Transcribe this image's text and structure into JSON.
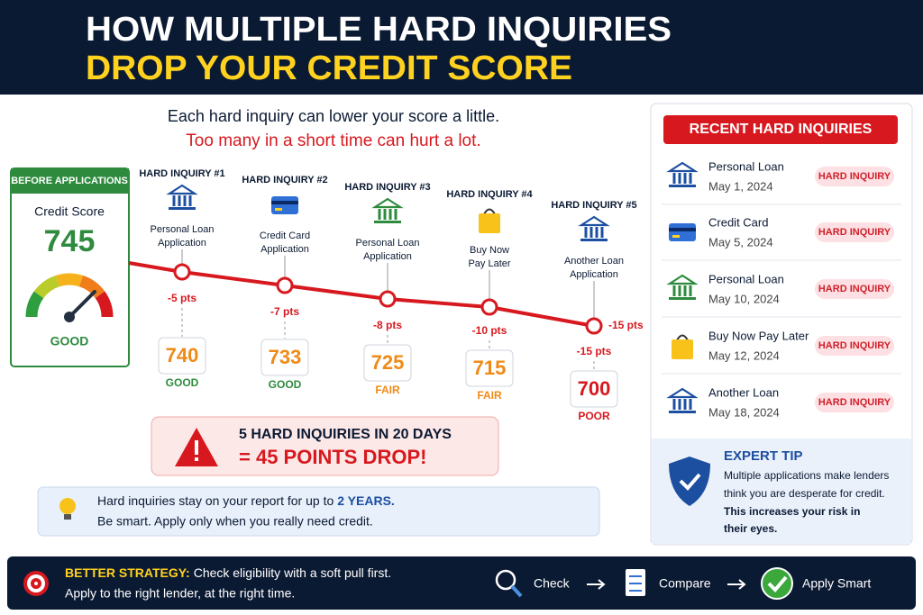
{
  "header": {
    "title_line1": "HOW MULTIPLE HARD INQUIRIES",
    "title_line2": "DROP YOUR CREDIT SCORE"
  },
  "intro": {
    "line1": "Each hard inquiry can lower your score a little.",
    "line2": "Too many in a short time can hurt a lot."
  },
  "before": {
    "label": "BEFORE APPLICATIONS",
    "score_label": "Credit Score",
    "score": "745",
    "rating": "GOOD"
  },
  "inquiries": [
    {
      "label": "HARD INQUIRY #1",
      "name": [
        "Personal Loan",
        "Application"
      ],
      "drop": "-5 pts",
      "score": "740",
      "rating": "GOOD"
    },
    {
      "label": "HARD INQUIRY #2",
      "name": [
        "Credit Card",
        "Application"
      ],
      "drop": "-7 pts",
      "score": "733",
      "rating": "GOOD"
    },
    {
      "label": "HARD INQUIRY #3",
      "name": [
        "Personal Loan",
        "Application"
      ],
      "drop": "-8 pts",
      "score": "725",
      "rating": "FAIR"
    },
    {
      "label": "HARD INQUIRY #4",
      "name": [
        "Buy Now",
        "Pay Later"
      ],
      "drop": "-10 pts",
      "score": "715",
      "rating": "FAIR"
    },
    {
      "label": "HARD INQUIRY #5",
      "name": [
        "Another Loan",
        "Application"
      ],
      "drop": "-15 pts",
      "point_label": "-15 pts",
      "score": "700",
      "rating": "POOR"
    }
  ],
  "alert": {
    "line1": "5 HARD INQUIRIES IN 20 DAYS",
    "line2": "= 45 POINTS DROP!"
  },
  "info": {
    "text": "Hard inquiries stay on your report for up to",
    "highlight": "2 YEARS.",
    "line2": "Be smart. Apply only when you really need credit."
  },
  "recent": {
    "title": "RECENT HARD INQUIRIES",
    "items": [
      {
        "name": "Personal Loan",
        "date": "May 1, 2024",
        "tag": "HARD INQUIRY"
      },
      {
        "name": "Credit Card",
        "date": "May 5, 2024",
        "tag": "HARD INQUIRY"
      },
      {
        "name": "Personal Loan",
        "date": "May 10, 2024",
        "tag": "HARD INQUIRY"
      },
      {
        "name": "Buy Now Pay Later",
        "date": "May 12, 2024",
        "tag": "HARD INQUIRY"
      },
      {
        "name": "Another Loan",
        "date": "May 18, 2024",
        "tag": "HARD INQUIRY"
      }
    ]
  },
  "tip": {
    "title": "EXPERT TIP",
    "text": [
      "Multiple applications make lenders",
      "think you are desperate for credit."
    ],
    "bold": [
      "This increases your risk in",
      "their eyes."
    ]
  },
  "strategy": {
    "label": "BETTER STRATEGY:",
    "line1": "Check eligibility with a soft pull first.",
    "line2": "Apply to the right lender, at the right time.",
    "steps": [
      "Check",
      "Compare",
      "Apply Smart"
    ]
  }
}
